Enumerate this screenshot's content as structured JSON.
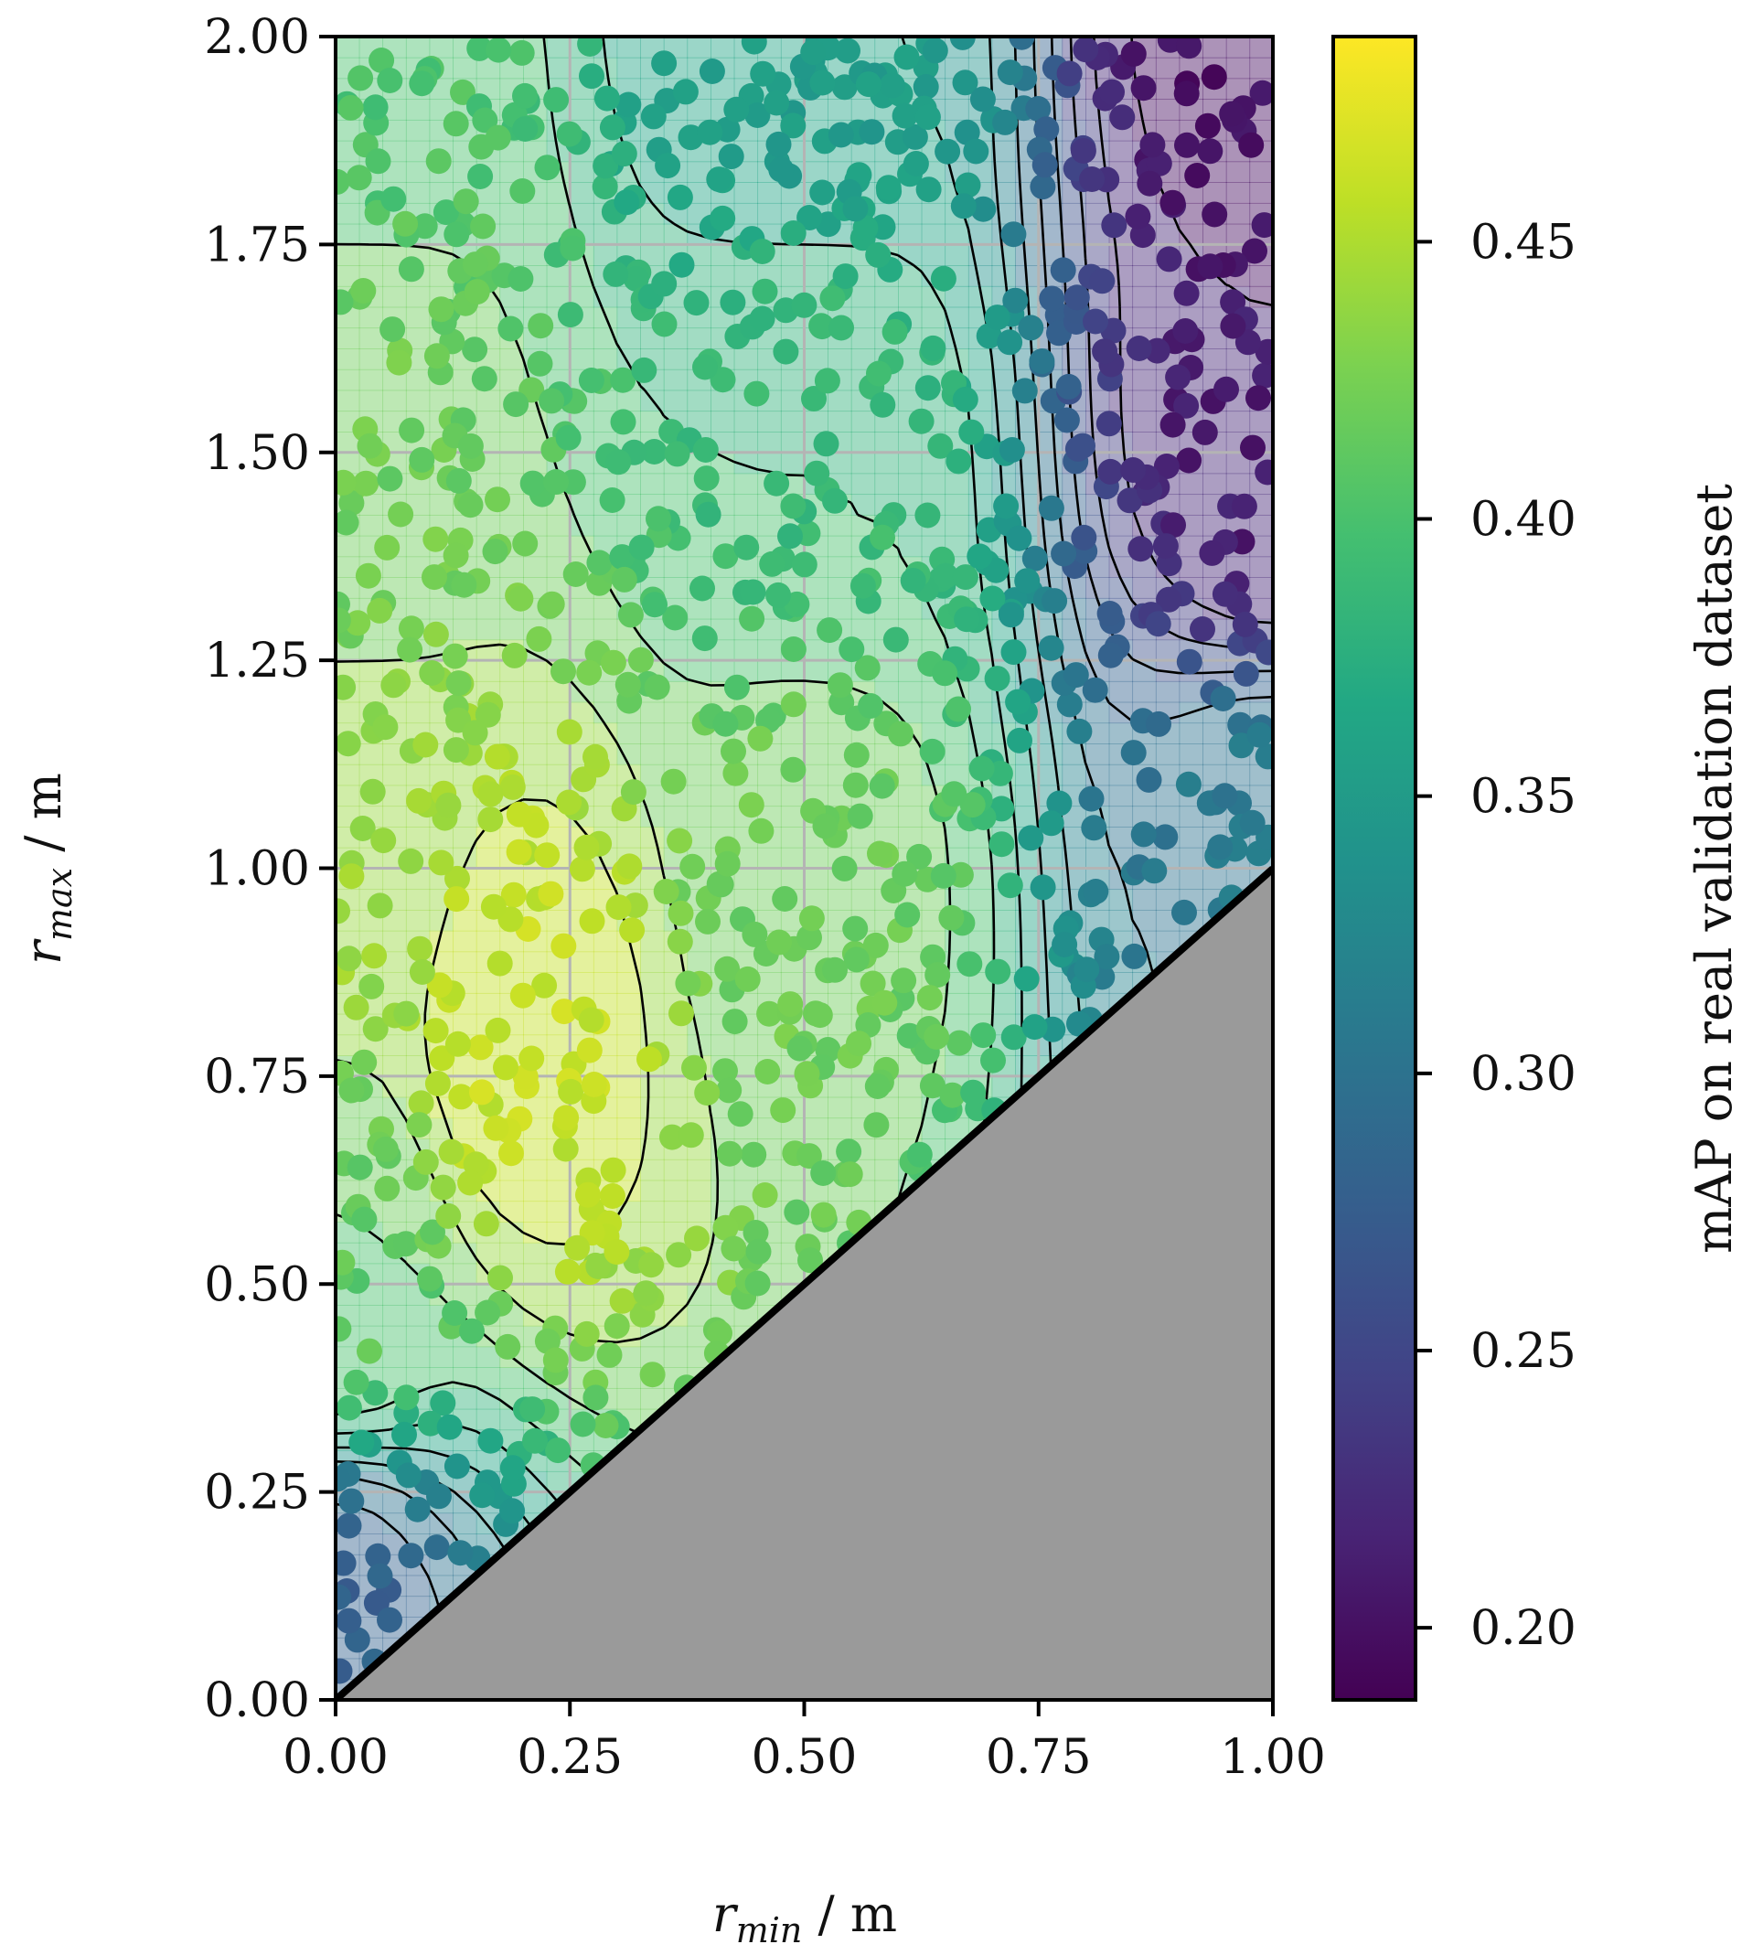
{
  "chart_data": {
    "type": "scatter",
    "subtype": "scatter-over-filled-contour",
    "xlabel": {
      "main": "r",
      "sub": "min",
      "unit": " / m"
    },
    "ylabel": {
      "main": "r",
      "sub": "max",
      "unit": " / m"
    },
    "colorbar_label": "mAP on real validation dataset",
    "xlim": [
      0.0,
      1.0
    ],
    "ylim": [
      0.0,
      2.0
    ],
    "x_ticks": [
      "0.00",
      "0.25",
      "0.50",
      "0.75",
      "1.00"
    ],
    "y_ticks": [
      "0.00",
      "0.25",
      "0.50",
      "0.75",
      "1.00",
      "1.25",
      "1.50",
      "1.75",
      "2.00"
    ],
    "colorbar_range": [
      0.187,
      0.487
    ],
    "colorbar_ticks": [
      "0.20",
      "0.25",
      "0.30",
      "0.35",
      "0.40",
      "0.45"
    ],
    "colormap": "viridis",
    "invalid_region": {
      "description": "r_max < r_min",
      "color": "#9a9a9a"
    },
    "grid": true,
    "contour_lines": true,
    "grid_color": "#b4b4b4",
    "approx_mAP_field": [
      {
        "x": 0.0,
        "y": 2.0,
        "mAP": 0.4
      },
      {
        "x": 0.5,
        "y": 2.0,
        "mAP": 0.35
      },
      {
        "x": 1.0,
        "y": 2.0,
        "mAP": 0.2
      },
      {
        "x": 0.0,
        "y": 1.5,
        "mAP": 0.42
      },
      {
        "x": 0.5,
        "y": 1.5,
        "mAP": 0.39
      },
      {
        "x": 1.0,
        "y": 1.5,
        "mAP": 0.21
      },
      {
        "x": 0.0,
        "y": 1.0,
        "mAP": 0.44
      },
      {
        "x": 0.5,
        "y": 1.0,
        "mAP": 0.42
      },
      {
        "x": 1.0,
        "y": 1.0,
        "mAP": 0.31
      },
      {
        "x": 0.2,
        "y": 0.8,
        "mAP": 0.46
      },
      {
        "x": 0.0,
        "y": 0.5,
        "mAP": 0.41
      },
      {
        "x": 0.0,
        "y": 0.1,
        "mAP": 0.28
      }
    ]
  }
}
